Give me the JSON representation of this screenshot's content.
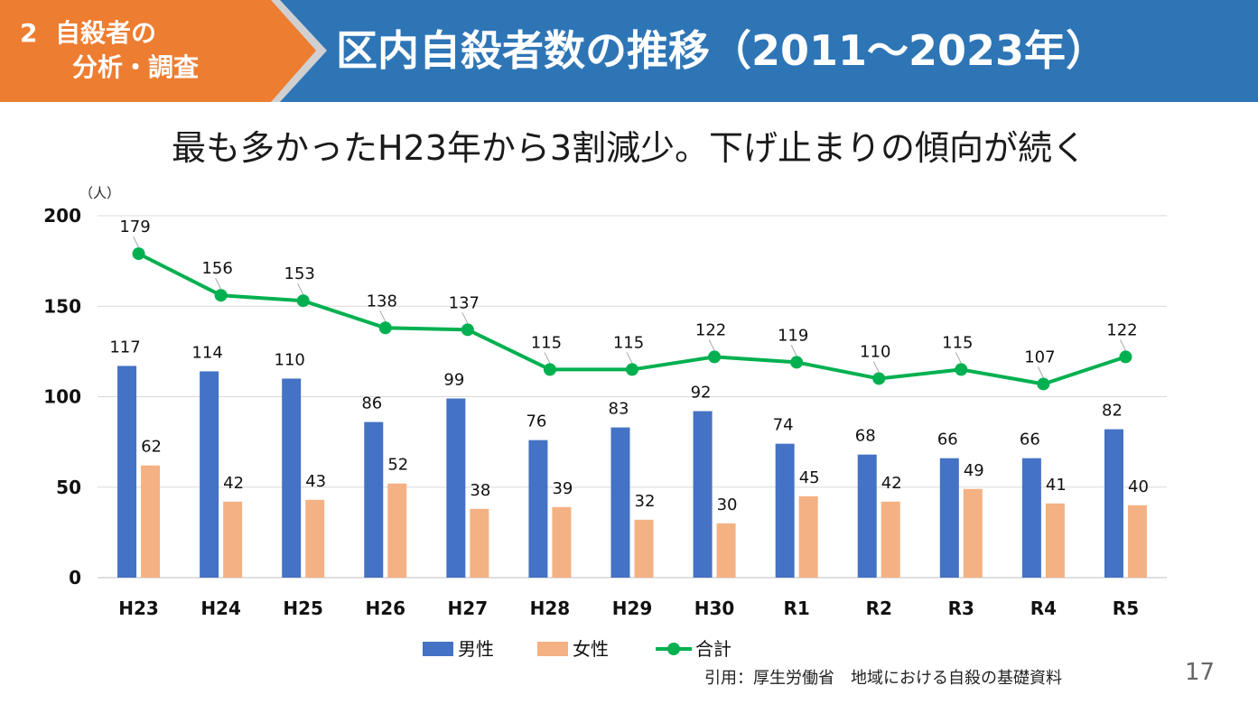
{
  "header": {
    "section_num": "2",
    "section_line1": "自殺者の",
    "section_line2": "分析・調査",
    "title": "区内自殺者数の推移（2011～2023年）",
    "colors": {
      "section_bg": "#ED7D31",
      "title_bg": "#2E75B6",
      "chevron_border": "#D0D0D0"
    }
  },
  "subtitle": "最も多かったH23年から3割減少。下げ止まりの傾向が続く",
  "chart_data": {
    "type": "bar+line",
    "unit_label": "（人）",
    "categories": [
      "H23",
      "H24",
      "H25",
      "H26",
      "H27",
      "H28",
      "H29",
      "H30",
      "R1",
      "R2",
      "R3",
      "R4",
      "R5"
    ],
    "ylim": [
      0,
      200
    ],
    "yticks": [
      0,
      50,
      100,
      150,
      200
    ],
    "grid": true,
    "legend_position": "bottom",
    "series": [
      {
        "name": "男性",
        "kind": "bar",
        "color": "#4472C4",
        "values": [
          117,
          114,
          110,
          86,
          99,
          76,
          83,
          92,
          74,
          68,
          66,
          66,
          82
        ]
      },
      {
        "name": "女性",
        "kind": "bar",
        "color": "#F4B183",
        "values": [
          62,
          42,
          43,
          52,
          38,
          39,
          32,
          30,
          45,
          42,
          49,
          41,
          40
        ]
      },
      {
        "name": "合計",
        "kind": "line",
        "color": "#00B050",
        "values": [
          179,
          156,
          153,
          138,
          137,
          115,
          115,
          122,
          119,
          110,
          115,
          107,
          122
        ]
      }
    ]
  },
  "footer": {
    "source": "引用：厚生労働省　地域における自殺の基礎資料",
    "page": "17"
  }
}
